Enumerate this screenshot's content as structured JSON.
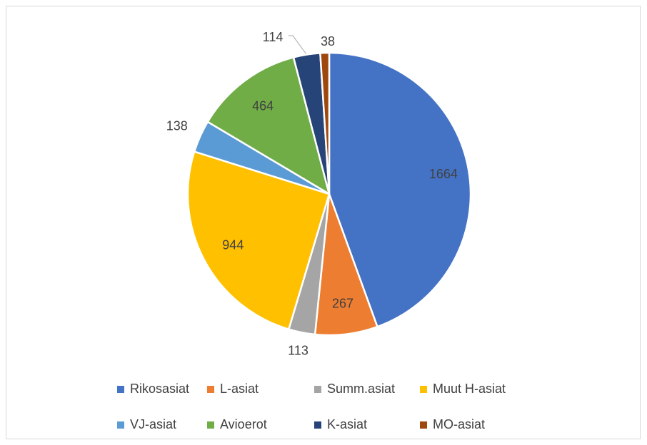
{
  "chart_data": {
    "type": "pie",
    "title": "",
    "series": [
      {
        "name": "Rikosasiat",
        "value": 1664,
        "color": "#4472C4"
      },
      {
        "name": "L-asiat",
        "value": 267,
        "color": "#ED7D31"
      },
      {
        "name": "Summ.asiat",
        "value": 113,
        "color": "#A5A5A5"
      },
      {
        "name": "Muut H-asiat",
        "value": 944,
        "color": "#FFC000"
      },
      {
        "name": "VJ-asiat",
        "value": 138,
        "color": "#5B9BD5"
      },
      {
        "name": "Avioerot",
        "value": 464,
        "color": "#70AD47"
      },
      {
        "name": "K-asiat",
        "value": 114,
        "color": "#264478"
      },
      {
        "name": "MO-asiat",
        "value": 38,
        "color": "#9E480E"
      }
    ],
    "data_labels_shown": true,
    "legend_position": "bottom"
  }
}
